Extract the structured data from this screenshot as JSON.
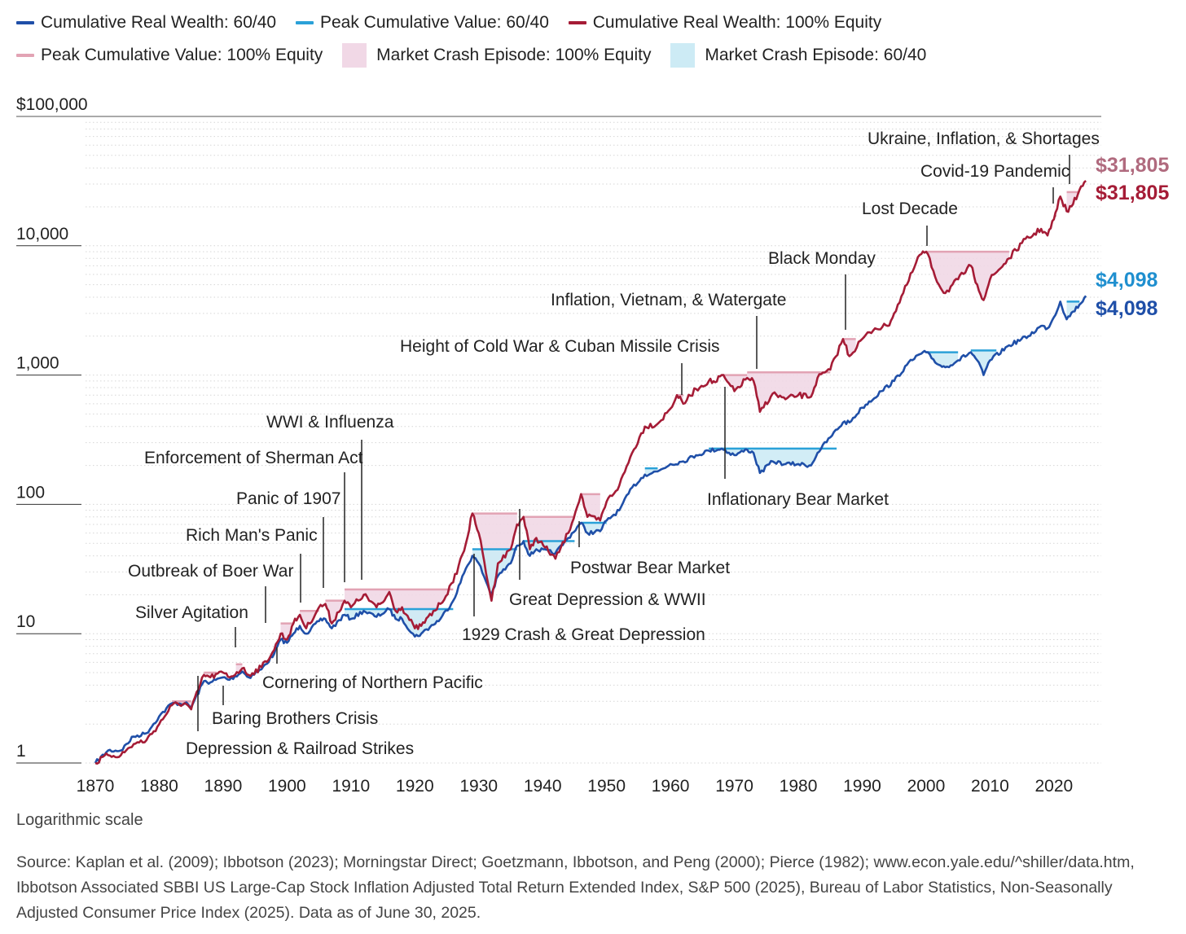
{
  "legend": {
    "items": [
      {
        "label": "Cumulative Real Wealth: 60/40",
        "kind": "line",
        "color": "#1f4fa8"
      },
      {
        "label": "Peak Cumulative Value: 60/40",
        "kind": "line",
        "color": "#2aa1d8"
      },
      {
        "label": "Cumulative Real Wealth: 100% Equity",
        "kind": "line",
        "color": "#a51c36"
      },
      {
        "label": "Peak Cumulative Value: 100% Equity",
        "kind": "line",
        "color": "#e2a3b4"
      },
      {
        "label": "Market Crash Episode: 100% Equity",
        "kind": "box",
        "color": "#f1d8e6"
      },
      {
        "label": "Market Crash Episode: 60/40",
        "kind": "box",
        "color": "#cdebf5"
      }
    ]
  },
  "colors": {
    "blue": "#1f4fa8",
    "blue_peak": "#2aa1d8",
    "blue_fill": "#cdebf5",
    "red": "#a51c36",
    "red_peak": "#e2a3b4",
    "red_fill": "#f1d8e6",
    "end_label_equity_peak": "#b06a7e",
    "end_label_equity": "#a51c36",
    "end_label_6040_peak": "#1f8fcf",
    "end_label_6040": "#1f4fa8"
  },
  "end_labels": {
    "equity_peak": "$31,805",
    "equity": "$31,805",
    "sixty_forty_peak": "$4,098",
    "sixty_forty": "$4,098"
  },
  "footer": {
    "scale_note": "Logarithmic scale",
    "source": "Source: Kaplan et al. (2009); Ibbotson (2023); Morningstar Direct; Goetzmann, Ibbotson, and Peng (2000); Pierce (1982); www.econ.yale.edu/^shiller/data.htm, Ibbotson Associated SBBI US Large-Cap Stock Inflation Adjusted Total Return Extended Index, S&P 500 (2025), Bureau of Labor Statistics, Non-Seasonally Adjusted Consumer Price Index (2025). Data as of June 30, 2025."
  },
  "chart_data": {
    "type": "line",
    "scale": "log",
    "title": "",
    "xlabel": "",
    "ylabel": "",
    "xlim": [
      1870,
      2025.5
    ],
    "ylim": [
      1,
      100000
    ],
    "x_ticks": [
      1870,
      1880,
      1890,
      1900,
      1910,
      1920,
      1930,
      1940,
      1950,
      1960,
      1970,
      1980,
      1990,
      2000,
      2010,
      2020
    ],
    "y_ticks": [
      {
        "value": 1,
        "label": "1"
      },
      {
        "value": 10,
        "label": "10"
      },
      {
        "value": 100,
        "label": "100"
      },
      {
        "value": 1000,
        "label": "1,000"
      },
      {
        "value": 10000,
        "label": "10,000"
      },
      {
        "value": 100000,
        "label": "$100,000"
      }
    ],
    "series": [
      {
        "name": "Cumulative Real Wealth: 100% Equity",
        "key": "equity",
        "points": [
          [
            1870,
            1.0
          ],
          [
            1872,
            1.15
          ],
          [
            1874,
            1.15
          ],
          [
            1876,
            1.4
          ],
          [
            1878,
            1.5
          ],
          [
            1880,
            2.0
          ],
          [
            1882,
            2.8
          ],
          [
            1884,
            2.9
          ],
          [
            1885,
            2.6
          ],
          [
            1887,
            4.8
          ],
          [
            1888,
            4.6
          ],
          [
            1890,
            5.0
          ],
          [
            1891,
            4.6
          ],
          [
            1893,
            5.4
          ],
          [
            1894,
            4.8
          ],
          [
            1896,
            5.5
          ],
          [
            1898,
            7.5
          ],
          [
            1899,
            10.0
          ],
          [
            1900,
            9.0
          ],
          [
            1901,
            12.0
          ],
          [
            1902,
            14.0
          ],
          [
            1903,
            11.0
          ],
          [
            1905,
            16.0
          ],
          [
            1906,
            17.0
          ],
          [
            1907,
            12.0
          ],
          [
            1909,
            18.0
          ],
          [
            1910,
            16.0
          ],
          [
            1912,
            20.0
          ],
          [
            1914,
            16.0
          ],
          [
            1915,
            17.5
          ],
          [
            1916,
            21.0
          ],
          [
            1917,
            15.0
          ],
          [
            1918,
            16.0
          ],
          [
            1920,
            11.0
          ],
          [
            1921,
            11.5
          ],
          [
            1924,
            17.0
          ],
          [
            1926,
            25.0
          ],
          [
            1928,
            50.0
          ],
          [
            1929,
            85.0
          ],
          [
            1930,
            60.0
          ],
          [
            1932,
            18.0
          ],
          [
            1933,
            35.0
          ],
          [
            1935,
            45.0
          ],
          [
            1936,
            70.0
          ],
          [
            1937,
            80.0
          ],
          [
            1938,
            45.0
          ],
          [
            1939,
            55.0
          ],
          [
            1942,
            38.0
          ],
          [
            1944,
            60.0
          ],
          [
            1946,
            120.0
          ],
          [
            1947,
            80.0
          ],
          [
            1949,
            75.0
          ],
          [
            1950,
            105.0
          ],
          [
            1952,
            140.0
          ],
          [
            1954,
            250.0
          ],
          [
            1956,
            400.0
          ],
          [
            1958,
            420.0
          ],
          [
            1960,
            550.0
          ],
          [
            1961,
            700.0
          ],
          [
            1962,
            600.0
          ],
          [
            1964,
            780.0
          ],
          [
            1966,
            900.0
          ],
          [
            1967,
            880.0
          ],
          [
            1968,
            1000.0
          ],
          [
            1970,
            750.0
          ],
          [
            1972,
            950.0
          ],
          [
            1973,
            900.0
          ],
          [
            1974,
            520.0
          ],
          [
            1976,
            720.0
          ],
          [
            1978,
            650.0
          ],
          [
            1980,
            700.0
          ],
          [
            1982,
            680.0
          ],
          [
            1983,
            950.0
          ],
          [
            1985,
            1100.0
          ],
          [
            1987,
            1900.0
          ],
          [
            1988,
            1400.0
          ],
          [
            1990,
            1900.0
          ],
          [
            1992,
            2300.0
          ],
          [
            1994,
            2400.0
          ],
          [
            1995,
            3000.0
          ],
          [
            1997,
            5000.0
          ],
          [
            1999,
            8500.0
          ],
          [
            2000,
            9000.0
          ],
          [
            2002,
            5000.0
          ],
          [
            2003,
            4300.0
          ],
          [
            2005,
            5500.0
          ],
          [
            2007,
            7000.0
          ],
          [
            2008,
            5000.0
          ],
          [
            2009,
            3800.0
          ],
          [
            2010,
            5500.0
          ],
          [
            2013,
            8000.0
          ],
          [
            2015,
            10500.0
          ],
          [
            2018,
            13500.0
          ],
          [
            2019,
            12000.0
          ],
          [
            2020,
            16000.0
          ],
          [
            2021,
            24000.0
          ],
          [
            2022,
            18500.0
          ],
          [
            2023,
            21000.0
          ],
          [
            2024,
            27000.0
          ],
          [
            2025,
            31805.0
          ]
        ]
      },
      {
        "name": "Cumulative Real Wealth: 60/40",
        "key": "sixty_forty",
        "points": [
          [
            1870,
            1.0
          ],
          [
            1872,
            1.25
          ],
          [
            1874,
            1.25
          ],
          [
            1876,
            1.6
          ],
          [
            1878,
            1.7
          ],
          [
            1880,
            2.3
          ],
          [
            1882,
            2.9
          ],
          [
            1884,
            2.9
          ],
          [
            1885,
            2.7
          ],
          [
            1887,
            4.3
          ],
          [
            1888,
            4.2
          ],
          [
            1890,
            4.6
          ],
          [
            1891,
            4.4
          ],
          [
            1893,
            5.1
          ],
          [
            1894,
            4.6
          ],
          [
            1896,
            5.3
          ],
          [
            1898,
            7.0
          ],
          [
            1899,
            9.0
          ],
          [
            1900,
            8.5
          ],
          [
            1901,
            10.0
          ],
          [
            1902,
            11.5
          ],
          [
            1903,
            10.0
          ],
          [
            1905,
            12.5
          ],
          [
            1906,
            13.0
          ],
          [
            1907,
            11.0
          ],
          [
            1909,
            14.0
          ],
          [
            1910,
            13.0
          ],
          [
            1912,
            15.0
          ],
          [
            1914,
            13.5
          ],
          [
            1916,
            15.5
          ],
          [
            1917,
            13.0
          ],
          [
            1918,
            13.0
          ],
          [
            1920,
            9.5
          ],
          [
            1921,
            10.0
          ],
          [
            1924,
            13.0
          ],
          [
            1926,
            18.0
          ],
          [
            1928,
            32.0
          ],
          [
            1929,
            40.0
          ],
          [
            1930,
            35.0
          ],
          [
            1932,
            20.0
          ],
          [
            1933,
            28.0
          ],
          [
            1935,
            35.0
          ],
          [
            1936,
            48.0
          ],
          [
            1937,
            52.0
          ],
          [
            1938,
            40.0
          ],
          [
            1939,
            45.0
          ],
          [
            1942,
            42.0
          ],
          [
            1944,
            55.0
          ],
          [
            1946,
            72.0
          ],
          [
            1947,
            60.0
          ],
          [
            1949,
            62.0
          ],
          [
            1950,
            75.0
          ],
          [
            1952,
            90.0
          ],
          [
            1954,
            135.0
          ],
          [
            1956,
            170.0
          ],
          [
            1958,
            180.0
          ],
          [
            1960,
            205.0
          ],
          [
            1962,
            215.0
          ],
          [
            1964,
            240.0
          ],
          [
            1966,
            260.0
          ],
          [
            1968,
            270.0
          ],
          [
            1970,
            240.0
          ],
          [
            1972,
            265.0
          ],
          [
            1973,
            250.0
          ],
          [
            1974,
            175.0
          ],
          [
            1976,
            215.0
          ],
          [
            1978,
            205.0
          ],
          [
            1980,
            205.0
          ],
          [
            1982,
            200.0
          ],
          [
            1983,
            250.0
          ],
          [
            1985,
            330.0
          ],
          [
            1987,
            430.0
          ],
          [
            1988,
            430.0
          ],
          [
            1990,
            560.0
          ],
          [
            1993,
            750.0
          ],
          [
            1995,
            900.0
          ],
          [
            1997,
            1200.0
          ],
          [
            1999,
            1450.0
          ],
          [
            2000,
            1500.0
          ],
          [
            2002,
            1200.0
          ],
          [
            2003,
            1150.0
          ],
          [
            2005,
            1300.0
          ],
          [
            2007,
            1500.0
          ],
          [
            2008,
            1300.0
          ],
          [
            2009,
            1000.0
          ],
          [
            2010,
            1300.0
          ],
          [
            2013,
            1700.0
          ],
          [
            2016,
            2000.0
          ],
          [
            2018,
            2400.0
          ],
          [
            2019,
            2300.0
          ],
          [
            2020,
            2800.0
          ],
          [
            2021,
            3700.0
          ],
          [
            2022,
            2700.0
          ],
          [
            2023,
            3100.0
          ],
          [
            2024,
            3500.0
          ],
          [
            2025,
            4098.0
          ]
        ]
      }
    ],
    "crash_episodes": {
      "equity": [
        [
          1882,
          1885,
          3.0
        ],
        [
          1887,
          1889,
          5.0
        ],
        [
          1892,
          1893,
          5.8
        ],
        [
          1899,
          1901,
          12.0
        ],
        [
          1902,
          1905,
          15.0
        ],
        [
          1906,
          1909,
          18.0
        ],
        [
          1909,
          1926,
          22.0
        ],
        [
          1929,
          1936,
          85.0
        ],
        [
          1937,
          1945,
          80.0
        ],
        [
          1946,
          1949,
          120.0
        ],
        [
          1961,
          1962,
          700.0
        ],
        [
          1968,
          1972,
          1000.0
        ],
        [
          1972,
          1985,
          1050.0
        ],
        [
          1987,
          1989,
          1900.0
        ],
        [
          2000,
          2013,
          9000.0
        ],
        [
          2020,
          2020.4,
          17000.0
        ],
        [
          2022,
          2024,
          26000.0
        ]
      ],
      "sixty_forty": [
        [
          1909,
          1926,
          15.5
        ],
        [
          1929,
          1936,
          45.0
        ],
        [
          1937,
          1945,
          52.0
        ],
        [
          1946,
          1950,
          72.0
        ],
        [
          1956,
          1958,
          190.0
        ],
        [
          1966,
          1972,
          270.0
        ],
        [
          1972,
          1986,
          270.0
        ],
        [
          2000,
          2005,
          1500.0
        ],
        [
          2007,
          2011,
          1550.0
        ],
        [
          2022,
          2024,
          3700.0
        ]
      ]
    },
    "annotations": [
      {
        "text": "Depression & Railroad Strikes",
        "year": 1887
      },
      {
        "text": "Baring Brothers Crisis",
        "year": 1890
      },
      {
        "text": "Silver Agitation",
        "year": 1893
      },
      {
        "text": "Cornering of Northern Pacific",
        "year": 1901
      },
      {
        "text": "Outbreak of Boer War",
        "year": 1899
      },
      {
        "text": "Rich Man's Panic",
        "year": 1903
      },
      {
        "text": "Panic of 1907",
        "year": 1907
      },
      {
        "text": "Enforcement of Sherman Act",
        "year": 1911
      },
      {
        "text": "WWI & Influenza",
        "year": 1912
      },
      {
        "text": "1929 Crash & Great Depression",
        "year": 1930
      },
      {
        "text": "Great Depression & WWII",
        "year": 1937
      },
      {
        "text": "Postwar Bear Market",
        "year": 1946
      },
      {
        "text": "Height of Cold War & Cuban Missile Crisis",
        "year": 1962
      },
      {
        "text": "Inflation, Vietnam, & Watergate",
        "year": 1973
      },
      {
        "text": "Inflationary Bear Market",
        "year": 1968
      },
      {
        "text": "Black Monday",
        "year": 1987
      },
      {
        "text": "Lost Decade",
        "year": 2000
      },
      {
        "text": "Covid-19 Pandemic",
        "year": 2020
      },
      {
        "text": "Ukraine, Inflation, & Shortages",
        "year": 2022
      }
    ]
  }
}
